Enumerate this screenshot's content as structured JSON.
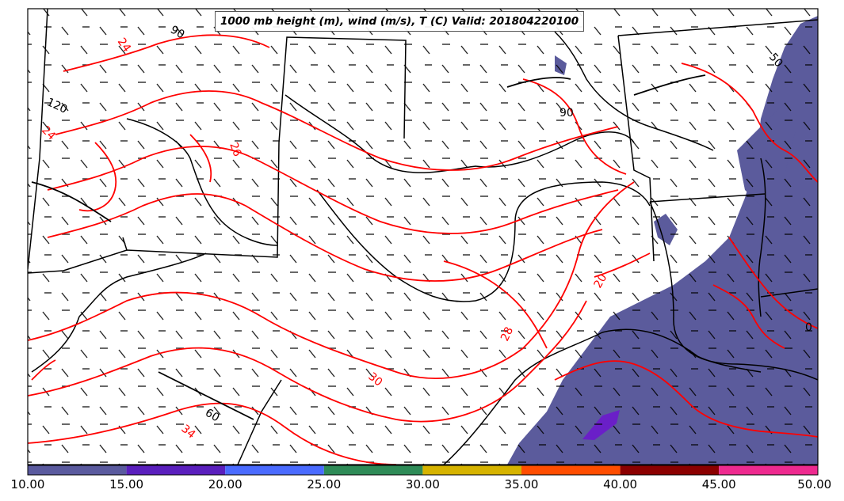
{
  "title": "1000 mb height (m), wind (m/s), T (C) Valid: 201804220100",
  "colors": {
    "temperature_contour": "#ff0000",
    "height_contour": "#000000",
    "precip_fill": "#5b5b9c",
    "precip_fill_dark": "#6a1fc8"
  },
  "temperature_contour_labels": [
    "24",
    "24",
    "26",
    "20",
    "28",
    "30",
    "34"
  ],
  "height_contour_labels": [
    "90",
    "120",
    "90",
    "50",
    "60",
    "0"
  ],
  "colorbar": {
    "ticks": [
      "10.00",
      "15.00",
      "20.00",
      "25.00",
      "30.00",
      "35.00",
      "40.00",
      "45.00",
      "50.00"
    ],
    "colors": [
      "#5a5a9e",
      "#5a1fbd",
      "#4a6bff",
      "#2e8b57",
      "#d6b300",
      "#ff4d00",
      "#8b0000",
      "#ee2a8f"
    ]
  }
}
